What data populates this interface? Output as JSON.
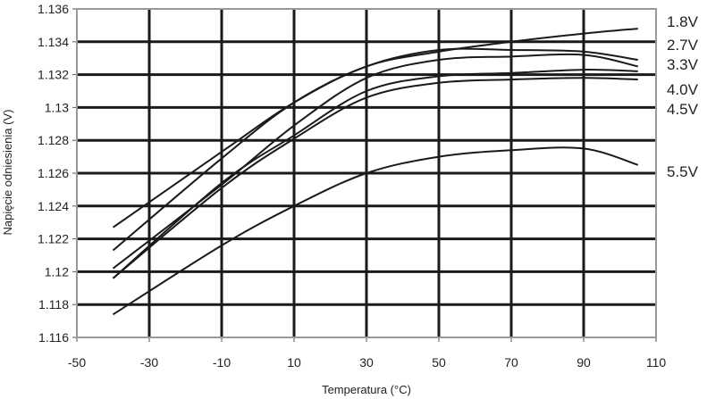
{
  "chart_data": {
    "type": "line",
    "title": "",
    "xlabel": "Temperatura (°C)",
    "ylabel": "Napięcie odniesienia (V)",
    "xlim": [
      -50,
      110
    ],
    "ylim": [
      1.116,
      1.136
    ],
    "xticks": [
      "-50",
      "-30",
      "-10",
      "10",
      "30",
      "50",
      "70",
      "90",
      "110"
    ],
    "yticks": [
      "1.136",
      "1.134",
      "1.132",
      "1.13",
      "1.128",
      "1.126",
      "1.124",
      "1.122",
      "1.12",
      "1.118",
      "1.116"
    ],
    "grid": true,
    "x": [
      -40,
      -10,
      10,
      30,
      50,
      70,
      90,
      105
    ],
    "series": [
      {
        "name": "1.8V",
        "values": [
          1.1227,
          1.1273,
          1.1303,
          1.1325,
          1.1334,
          1.134,
          1.1345,
          1.1348
        ]
      },
      {
        "name": "2.7V",
        "values": [
          1.1213,
          1.1269,
          1.1303,
          1.1325,
          1.1335,
          1.1335,
          1.1334,
          1.1329
        ]
      },
      {
        "name": "3.3V",
        "values": [
          1.1202,
          1.1253,
          1.1289,
          1.1318,
          1.1329,
          1.1331,
          1.1332,
          1.1325
        ]
      },
      {
        "name": "4.0V",
        "values": [
          1.1196,
          1.1254,
          1.1283,
          1.131,
          1.1319,
          1.1321,
          1.1323,
          1.1322
        ]
      },
      {
        "name": "4.5V",
        "values": [
          1.1196,
          1.1251,
          1.1281,
          1.1306,
          1.1315,
          1.1317,
          1.1318,
          1.1317
        ]
      },
      {
        "name": "5.5V",
        "values": [
          1.1174,
          1.1216,
          1.124,
          1.126,
          1.127,
          1.1274,
          1.1275,
          1.1265
        ]
      }
    ],
    "legend": "right"
  }
}
